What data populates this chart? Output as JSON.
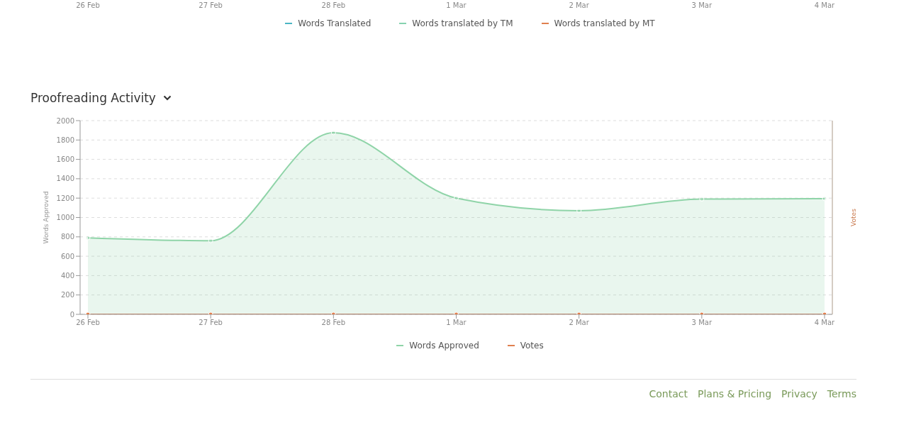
{
  "chart_data": [
    {
      "type": "other",
      "categories": [
        "26 Feb",
        "27 Feb",
        "28 Feb",
        "1 Mar",
        "2 Mar",
        "3 Mar",
        "4 Mar"
      ],
      "legend": "bottom",
      "series": [
        {
          "name": "Words Translated",
          "color": "#4ab5c4",
          "values": [
            null,
            null,
            null,
            null,
            null,
            null,
            null
          ]
        },
        {
          "name": "Words translated by TM",
          "color": "#86d3b0",
          "values": [
            null,
            null,
            null,
            null,
            null,
            null,
            null
          ]
        },
        {
          "name": "Words translated by MT",
          "color": "#e0804f",
          "values": [
            null,
            null,
            null,
            null,
            null,
            null,
            null
          ]
        }
      ]
    },
    {
      "type": "area",
      "title": "Proofreading Activity",
      "ylabel": "Words Approved",
      "y2label": "Votes",
      "categories": [
        "26 Feb",
        "27 Feb",
        "28 Feb",
        "1 Mar",
        "2 Mar",
        "3 Mar",
        "4 Mar"
      ],
      "ylim": [
        0,
        2000
      ],
      "yticks": [
        0,
        200,
        400,
        600,
        800,
        1000,
        1200,
        1400,
        1600,
        1800,
        2000
      ],
      "grid": "y",
      "legend": "bottom",
      "marker": "circle",
      "series": [
        {
          "name": "Words Approved",
          "color": "#8fd4a8",
          "values": [
            790,
            760,
            1875,
            1200,
            1070,
            1190,
            1195
          ]
        },
        {
          "name": "Votes",
          "type": "line",
          "color": "#e0804f",
          "values": [
            0,
            0,
            0,
            0,
            0,
            0,
            0
          ]
        }
      ],
      "annotations": [
        "Contact",
        "Plans & Pricing",
        "Privacy",
        "Terms"
      ]
    }
  ]
}
